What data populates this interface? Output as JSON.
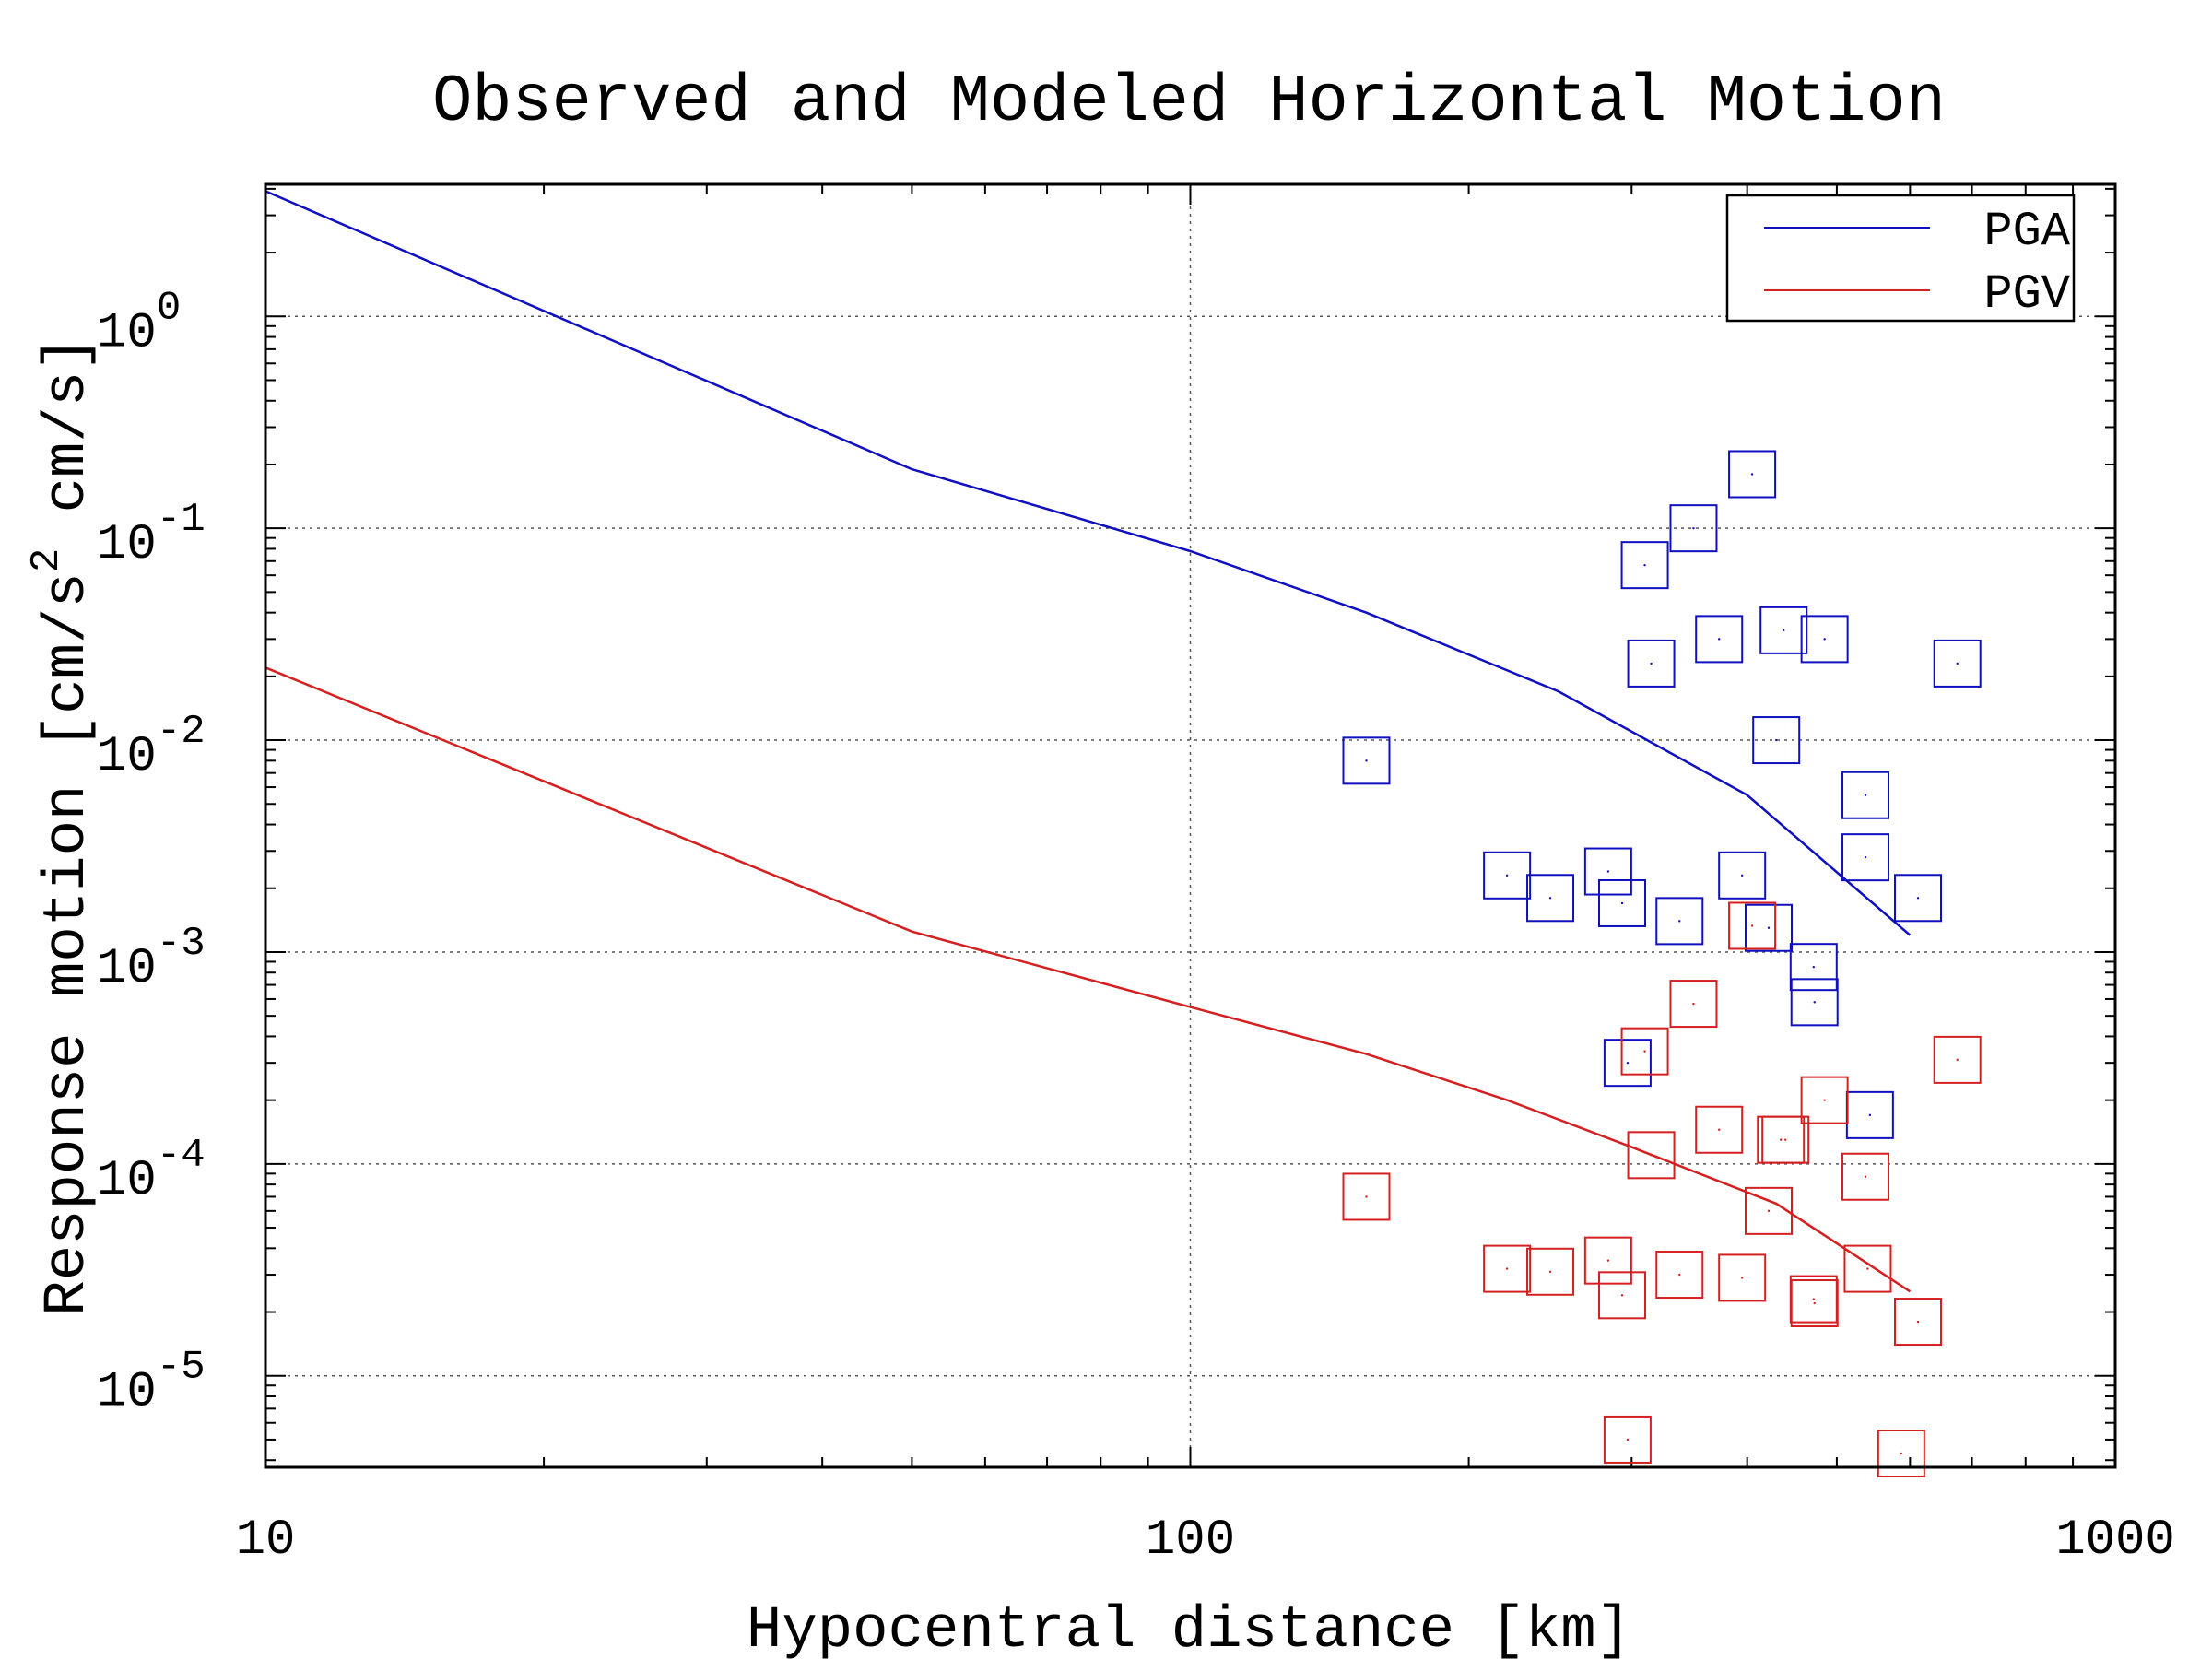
{
  "chart_data": {
    "type": "scatter",
    "title": "Observed and Modeled Horizontal Motion",
    "xlabel": "Hypocentral distance [km]",
    "ylabel": "Response motion  [cm/s",
    "ylabel_sup": "2",
    "ylabel_end": "  cm/s]",
    "xscale": "log",
    "yscale": "log",
    "xlim": [
      10,
      1000
    ],
    "ylim": [
      3.7e-06,
      4.2
    ],
    "grid": true,
    "legend_position": "top-right",
    "x_ticks": [
      {
        "value": 10,
        "label": "10"
      },
      {
        "value": 100,
        "label": "100"
      },
      {
        "value": 1000,
        "label": "1000"
      }
    ],
    "y_ticks": [
      {
        "value": 1,
        "base": "10",
        "exp": "0"
      },
      {
        "value": 0.1,
        "base": "10",
        "exp": "-1"
      },
      {
        "value": 0.01,
        "base": "10",
        "exp": "-2"
      },
      {
        "value": 0.001,
        "base": "10",
        "exp": "-3"
      },
      {
        "value": 0.0001,
        "base": "10",
        "exp": "-4"
      },
      {
        "value": 1e-05,
        "base": "10",
        "exp": "-5"
      }
    ],
    "series": [
      {
        "name": "PGA",
        "color": "#1010c0",
        "line": [
          [
            10,
            3.9
          ],
          [
            50,
            0.19
          ],
          [
            100,
            0.078
          ],
          [
            155,
            0.04
          ],
          [
            250,
            0.017
          ],
          [
            400,
            0.0055
          ],
          [
            600,
            0.0012
          ]
        ],
        "points": [
          [
            155,
            0.008
          ],
          [
            220,
            0.0023
          ],
          [
            245,
            0.0018
          ],
          [
            283,
            0.0024
          ],
          [
            293,
            0.0017
          ],
          [
            297,
            0.0003
          ],
          [
            310,
            0.067
          ],
          [
            315,
            0.023
          ],
          [
            338,
            0.0014
          ],
          [
            350,
            0.1
          ],
          [
            373,
            0.03
          ],
          [
            395,
            0.0023
          ],
          [
            405,
            0.18
          ],
          [
            422,
            0.0013
          ],
          [
            430,
            0.01
          ],
          [
            438,
            0.033
          ],
          [
            472,
            0.00085
          ],
          [
            473,
            0.00058
          ],
          [
            485,
            0.03
          ],
          [
            537,
            0.0055
          ],
          [
            537,
            0.0028
          ],
          [
            543,
            0.00017
          ],
          [
            612,
            0.0018
          ],
          [
            675,
            0.023
          ]
        ]
      },
      {
        "name": "PGV",
        "color": "#d42020",
        "line": [
          [
            10,
            0.022
          ],
          [
            50,
            0.00125
          ],
          [
            100,
            0.00055
          ],
          [
            155,
            0.00033
          ],
          [
            220,
            0.0002
          ],
          [
            300,
            0.00012
          ],
          [
            430,
            6.5e-05
          ],
          [
            600,
            2.5e-05
          ]
        ],
        "points": [
          [
            155,
            7e-05
          ],
          [
            220,
            3.2e-05
          ],
          [
            245,
            3.1e-05
          ],
          [
            283,
            3.5e-05
          ],
          [
            293,
            2.4e-05
          ],
          [
            297,
            5e-06
          ],
          [
            310,
            0.00034
          ],
          [
            315,
            0.00011
          ],
          [
            338,
            3e-05
          ],
          [
            350,
            0.00057
          ],
          [
            373,
            0.000145
          ],
          [
            395,
            2.9e-05
          ],
          [
            405,
            0.00133
          ],
          [
            422,
            6e-05
          ],
          [
            435,
            0.00013
          ],
          [
            440,
            0.00013
          ],
          [
            472,
            2.3e-05
          ],
          [
            473,
            2.2e-05
          ],
          [
            485,
            0.0002
          ],
          [
            537,
            8.7e-05
          ],
          [
            540,
            3.2e-05
          ],
          [
            587,
            4.3e-06
          ],
          [
            612,
            1.8e-05
          ],
          [
            675,
            0.00031
          ]
        ]
      }
    ]
  }
}
